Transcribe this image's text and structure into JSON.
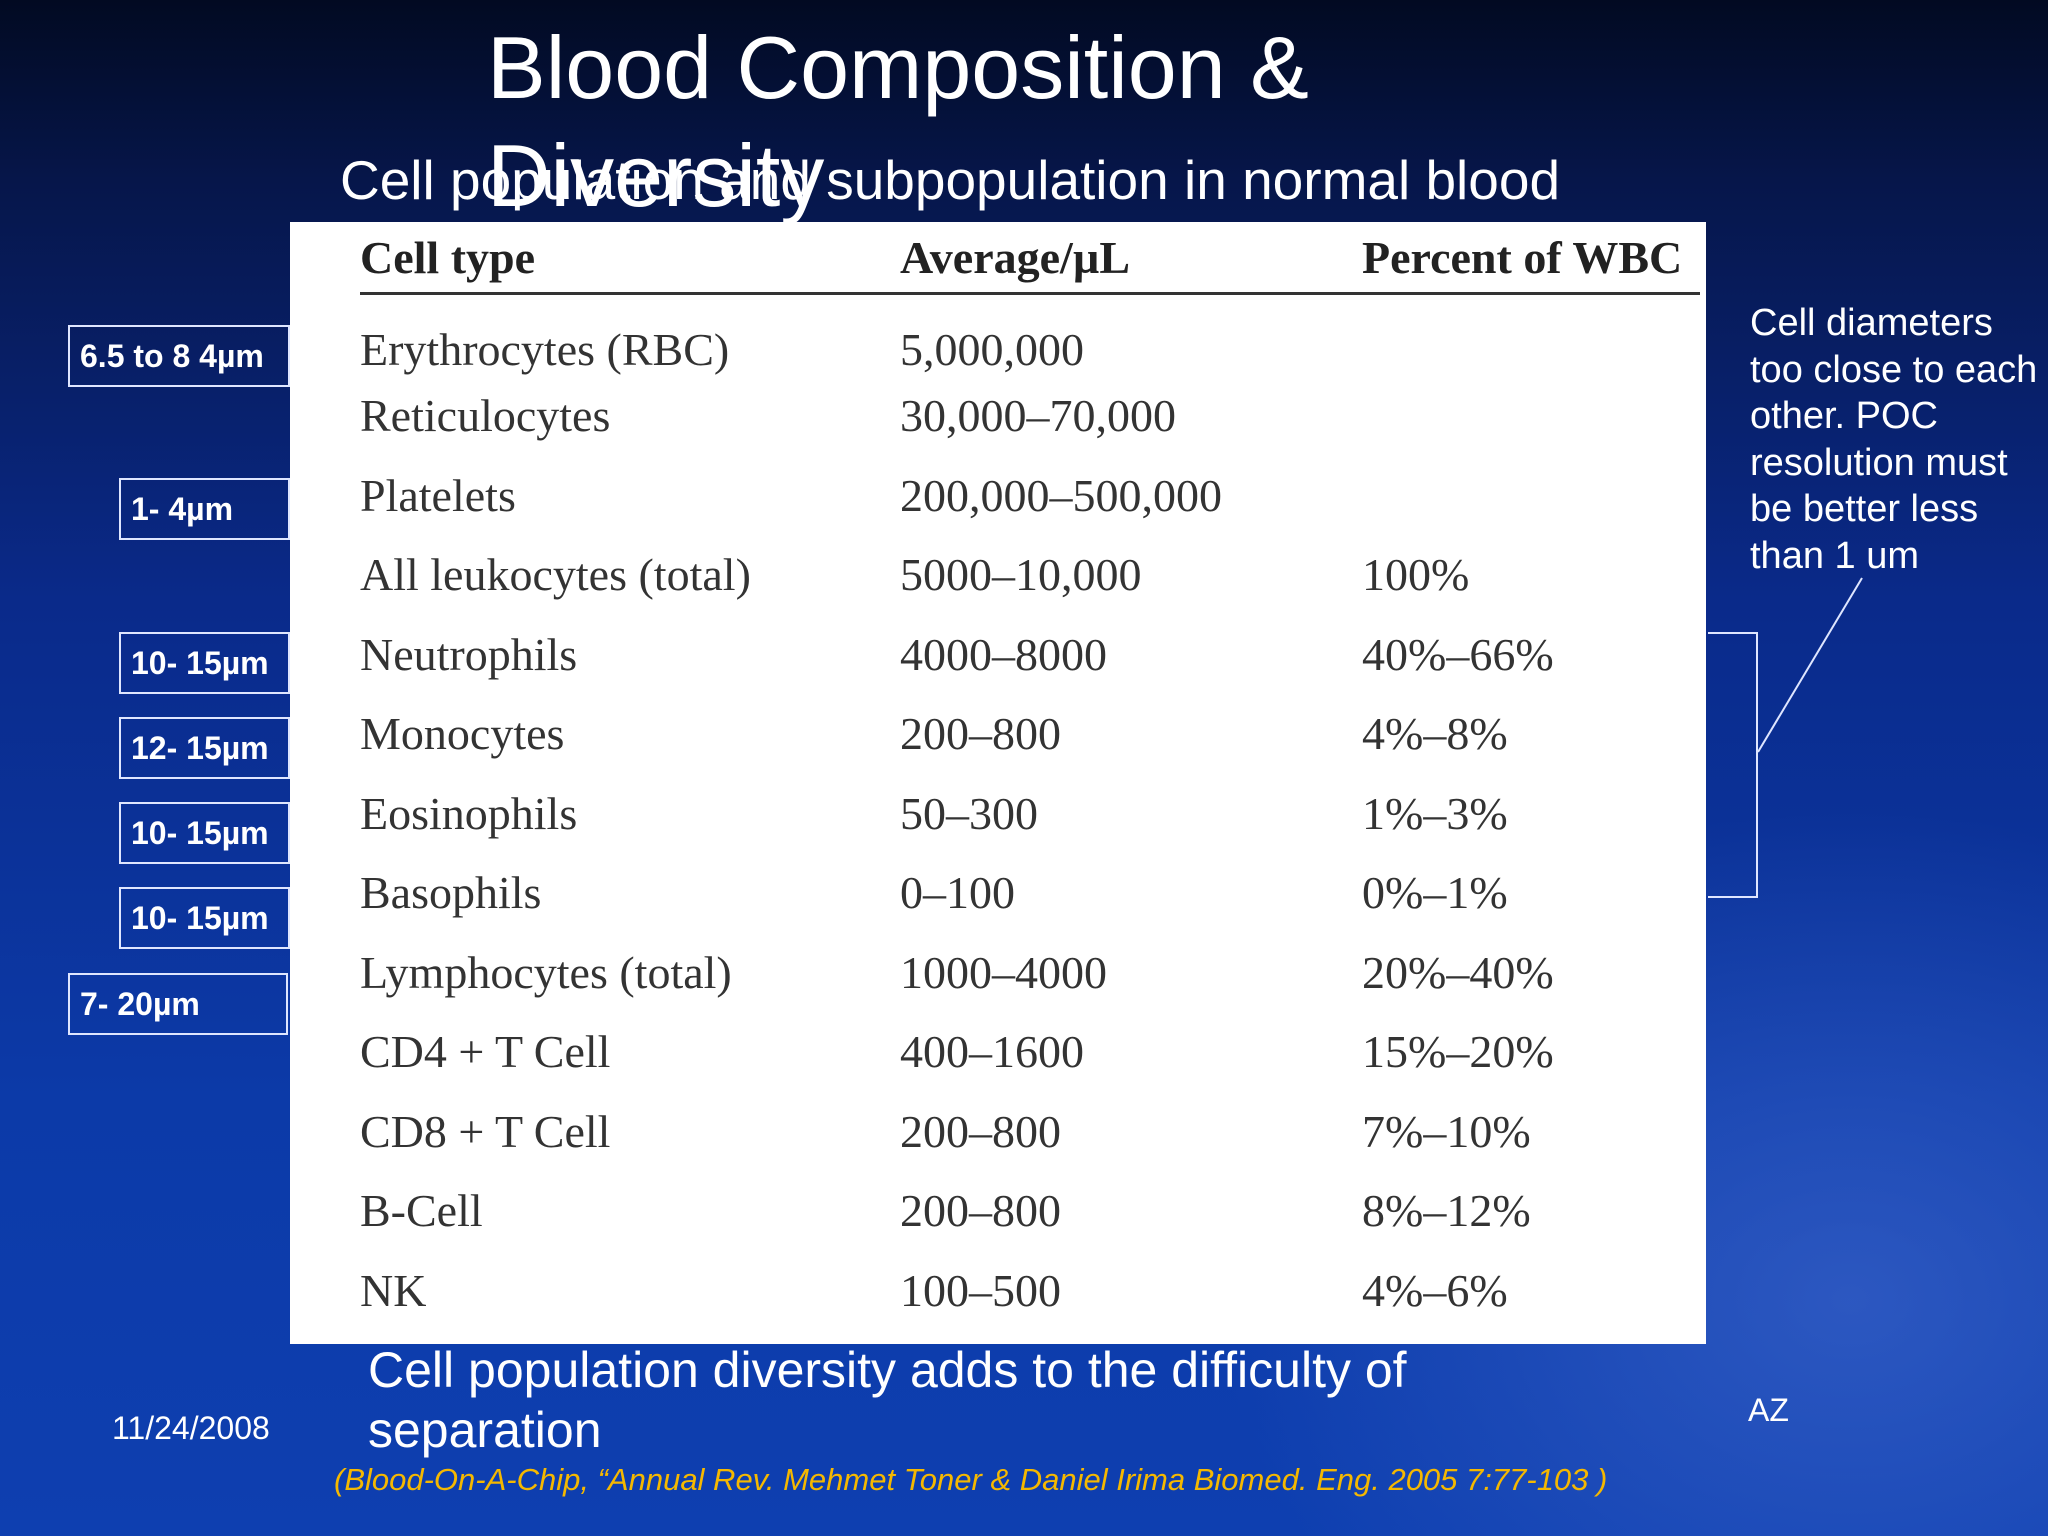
{
  "slide": {
    "title": "Blood Composition & Diversity",
    "subtitle": "Cell population and subpopulation in normal blood",
    "bottom_text": "Cell population diversity adds to the difficulty of separation",
    "date": "11/24/2008",
    "author": "AZ",
    "citation": "(Blood-On-A-Chip, “Annual Rev. Mehmet Toner & Daniel Irima Biomed. Eng. 2005 7:77-103 )",
    "note": "Cell diameters too close to each other. POC resolution must be better less than 1 um"
  },
  "table": {
    "headers": [
      "Cell type",
      "Average/µL",
      "Percent of WBC"
    ],
    "rows": [
      [
        "Erythrocytes (RBC)",
        "5,000,000",
        ""
      ],
      [
        "Reticulocytes",
        "30,000–70,000",
        ""
      ],
      [
        "Platelets",
        "200,000–500,000",
        ""
      ],
      [
        "All leukocytes (total)",
        "5000–10,000",
        "100%"
      ],
      [
        "Neutrophils",
        "4000–8000",
        "40%–66%"
      ],
      [
        "Monocytes",
        "200–800",
        "4%–8%"
      ],
      [
        "Eosinophils",
        "50–300",
        "1%–3%"
      ],
      [
        "Basophils",
        "0–100",
        "0%–1%"
      ],
      [
        "Lymphocytes (total)",
        "1000–4000",
        "20%–40%"
      ],
      [
        "CD4 + T Cell",
        "400–1600",
        "15%–20%"
      ],
      [
        "CD8 + T Cell",
        "200–800",
        "7%–10%"
      ],
      [
        "B-Cell",
        "200–800",
        "8%–12%"
      ],
      [
        "NK",
        "100–500",
        "4%–6%"
      ]
    ]
  },
  "size_labels": [
    "6.5 to 8 4µm",
    "1- 4µm",
    "10- 15µm",
    "12- 15µm",
    "10- 15µm",
    "10- 15µm",
    "7- 20µm"
  ]
}
